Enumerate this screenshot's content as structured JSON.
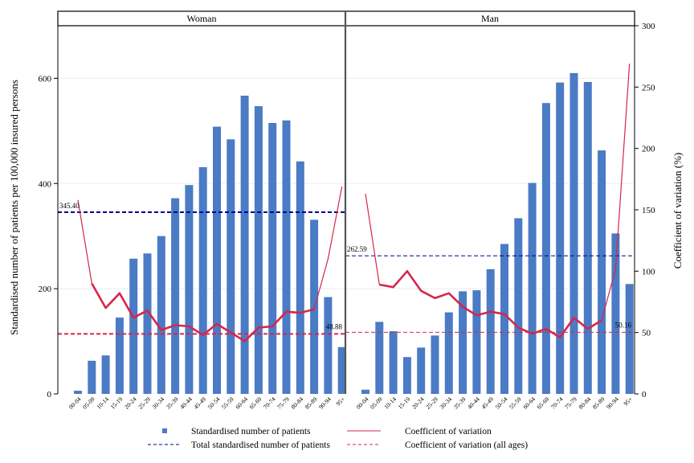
{
  "chart_data": {
    "type": "bar",
    "categories": [
      "00-04",
      "05-09",
      "10-14",
      "15-19",
      "20-24",
      "25-29",
      "30-34",
      "35-39",
      "40-44",
      "45-49",
      "50-54",
      "55-59",
      "60-64",
      "65-69",
      "70-74",
      "75-79",
      "80-84",
      "85-89",
      "90-94",
      "95+"
    ],
    "panels": [
      {
        "name": "Woman",
        "bar_values": [
          6,
          63,
          73,
          145,
          257,
          267,
          300,
          372,
          397,
          431,
          508,
          484,
          567,
          547,
          515,
          520,
          442,
          331,
          184,
          89
        ],
        "cv_values": [
          158,
          90,
          70,
          82,
          62,
          68,
          52,
          56,
          55,
          48,
          57,
          50,
          43,
          54,
          55,
          67,
          66,
          69,
          110,
          169
        ],
        "total_ref": 345.4,
        "total_ref_label": "345.40",
        "cv_all_ages": 48.88,
        "cv_all_ages_label": "48.88"
      },
      {
        "name": "Man",
        "bar_values": [
          8,
          137,
          119,
          70,
          88,
          111,
          155,
          195,
          197,
          237,
          285,
          334,
          401,
          553,
          592,
          610,
          593,
          463,
          305,
          209
        ],
        "cv_values": [
          163,
          89,
          87,
          100,
          84,
          78,
          82,
          71,
          64,
          67,
          65,
          54,
          49,
          53,
          46,
          62,
          53,
          60,
          102,
          269
        ],
        "total_ref": 262.59,
        "total_ref_label": "262.59",
        "cv_all_ages": 50.16,
        "cv_all_ages_label": "50.16"
      }
    ],
    "ylabel": "Standardised number of patients per 100,000 insured persons",
    "y2label": "Coefficient of variation (%)",
    "ylim": [
      0,
      700
    ],
    "y2lim": [
      0,
      300
    ],
    "yticks": [
      0,
      200,
      400,
      600
    ],
    "y2ticks": [
      0,
      50,
      100,
      150,
      200,
      250,
      300
    ],
    "legend": {
      "placement": "bottom",
      "items": [
        {
          "label": "Standardised number of patients",
          "kind": "bar"
        },
        {
          "label": "Coefficient of variation",
          "kind": "cv-line"
        },
        {
          "label": "Total standardised number of patients",
          "kind": "total-dashed"
        },
        {
          "label": "Coefficient of variation (all ages)",
          "kind": "cv-dashed"
        }
      ]
    },
    "colors": {
      "bar": "#4a7bc4",
      "cv_line": "#d6264a",
      "total_ref": "#00008b",
      "cv_ref": "#d6264a",
      "frame": "#000000",
      "grid": "#eeeeee"
    }
  }
}
